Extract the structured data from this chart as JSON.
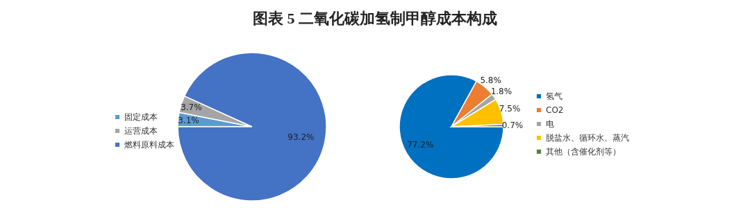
{
  "chart_data": [
    {
      "type": "pie",
      "title": "图表 5  二氧化碳加氢制甲醇成本构成",
      "categories": [
        "固定成本",
        "运营成本",
        "燃料原料成本"
      ],
      "values": [
        3.1,
        3.7,
        93.2
      ],
      "colors": [
        "#5b9bd5",
        "#a5a5a5",
        "#4472c4"
      ],
      "value_labels": [
        "3.1%",
        "3.7%",
        "93.2%"
      ],
      "legend": "left"
    },
    {
      "type": "pie",
      "categories": [
        "氢气",
        "CO2",
        "电",
        "脱盐水、循环水、蒸汽",
        "其他（含催化剂等）"
      ],
      "values": [
        77.2,
        5.8,
        1.8,
        7.5,
        0.7
      ],
      "colors": [
        "#0070c0",
        "#ed7d31",
        "#a5a5a5",
        "#ffc000",
        "#548235"
      ],
      "value_labels": [
        "77.2%",
        "5.8%",
        "1.8%",
        "7.5%",
        "0.7%"
      ],
      "legend": "right"
    }
  ]
}
